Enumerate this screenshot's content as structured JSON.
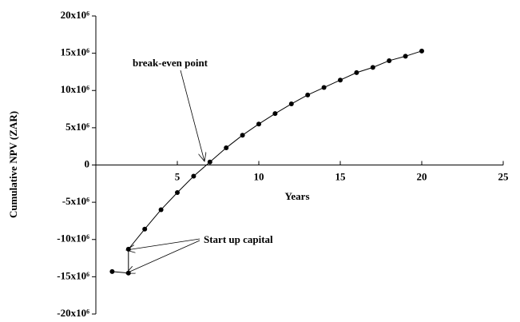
{
  "chart_data": {
    "type": "line",
    "x_label": "Years",
    "y_label": "Cumulative NPV (ZAR)",
    "annotations": [
      "break-even point",
      "Start up capital"
    ],
    "xlim": [
      0,
      25
    ],
    "xticks": [
      5,
      10,
      15,
      20,
      25
    ],
    "ylim": [
      -20000000,
      20000000
    ],
    "yticks": [
      {
        "value": -20000000,
        "label": "-20x10⁶"
      },
      {
        "value": -15000000,
        "label": "-15x10⁶"
      },
      {
        "value": -10000000,
        "label": "-10x10⁶"
      },
      {
        "value": -5000000,
        "label": "-5x10⁶"
      },
      0,
      {
        "value": 5000000,
        "label": "5x10⁶"
      },
      {
        "value": 10000000,
        "label": "10x10⁶"
      },
      {
        "value": 15000000,
        "label": "15x10⁶"
      },
      {
        "value": 20000000,
        "label": "20x10⁶"
      }
    ],
    "series": [
      {
        "color": "#000000",
        "x": [
          1,
          2,
          2,
          3,
          4,
          5,
          6,
          7,
          8,
          9,
          10,
          11,
          12,
          13,
          14,
          15,
          16,
          17,
          18,
          19,
          20
        ],
        "values": [
          -14300000,
          -14500000,
          -11300000,
          -8600000,
          -6000000,
          -3700000,
          -1500000,
          400000,
          2300000,
          4000000,
          5500000,
          6900000,
          8200000,
          9400000,
          10400000,
          11400000,
          12400000,
          13100000,
          14000000,
          14600000,
          15300000
        ]
      }
    ]
  }
}
